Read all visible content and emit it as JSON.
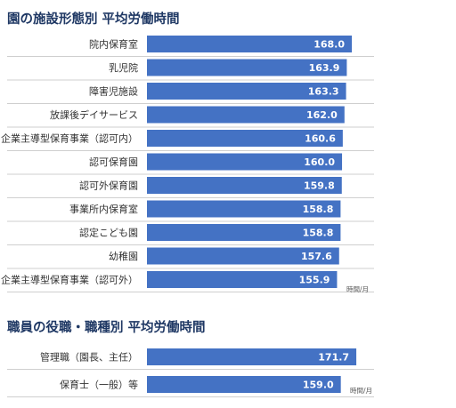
{
  "bar_color": "#4472c4",
  "unit_label": "時間/月",
  "chart_data": [
    {
      "type": "bar",
      "orientation": "horizontal",
      "title": "園の施設形態別 平均労働時間",
      "categories": [
        "院内保育室",
        "乳児院",
        "障害児施設",
        "放課後デイサービス",
        "企業主導型保育事業（認可内）",
        "認可保育園",
        "認可外保育園",
        "事業所内保育室",
        "認定こども園",
        "幼稚園",
        "企業主導型保育事業（認可外）"
      ],
      "values": [
        168.0,
        163.9,
        163.3,
        162.0,
        160.6,
        160.0,
        159.8,
        158.8,
        158.8,
        157.6,
        155.9
      ],
      "value_labels": [
        "168.0",
        "163.9",
        "163.3",
        "162.0",
        "160.6",
        "160.0",
        "159.8",
        "158.8",
        "158.8",
        "157.6",
        "155.9"
      ],
      "unit": "時間/月"
    },
    {
      "type": "bar",
      "orientation": "horizontal",
      "title": "職員の役職・職種別 平均労働時間",
      "categories": [
        "管理職（園長、主任）",
        "保育士（一般）等"
      ],
      "values": [
        171.7,
        159.0
      ],
      "value_labels": [
        "171.7",
        "159.0"
      ],
      "unit": "時間/月"
    }
  ]
}
